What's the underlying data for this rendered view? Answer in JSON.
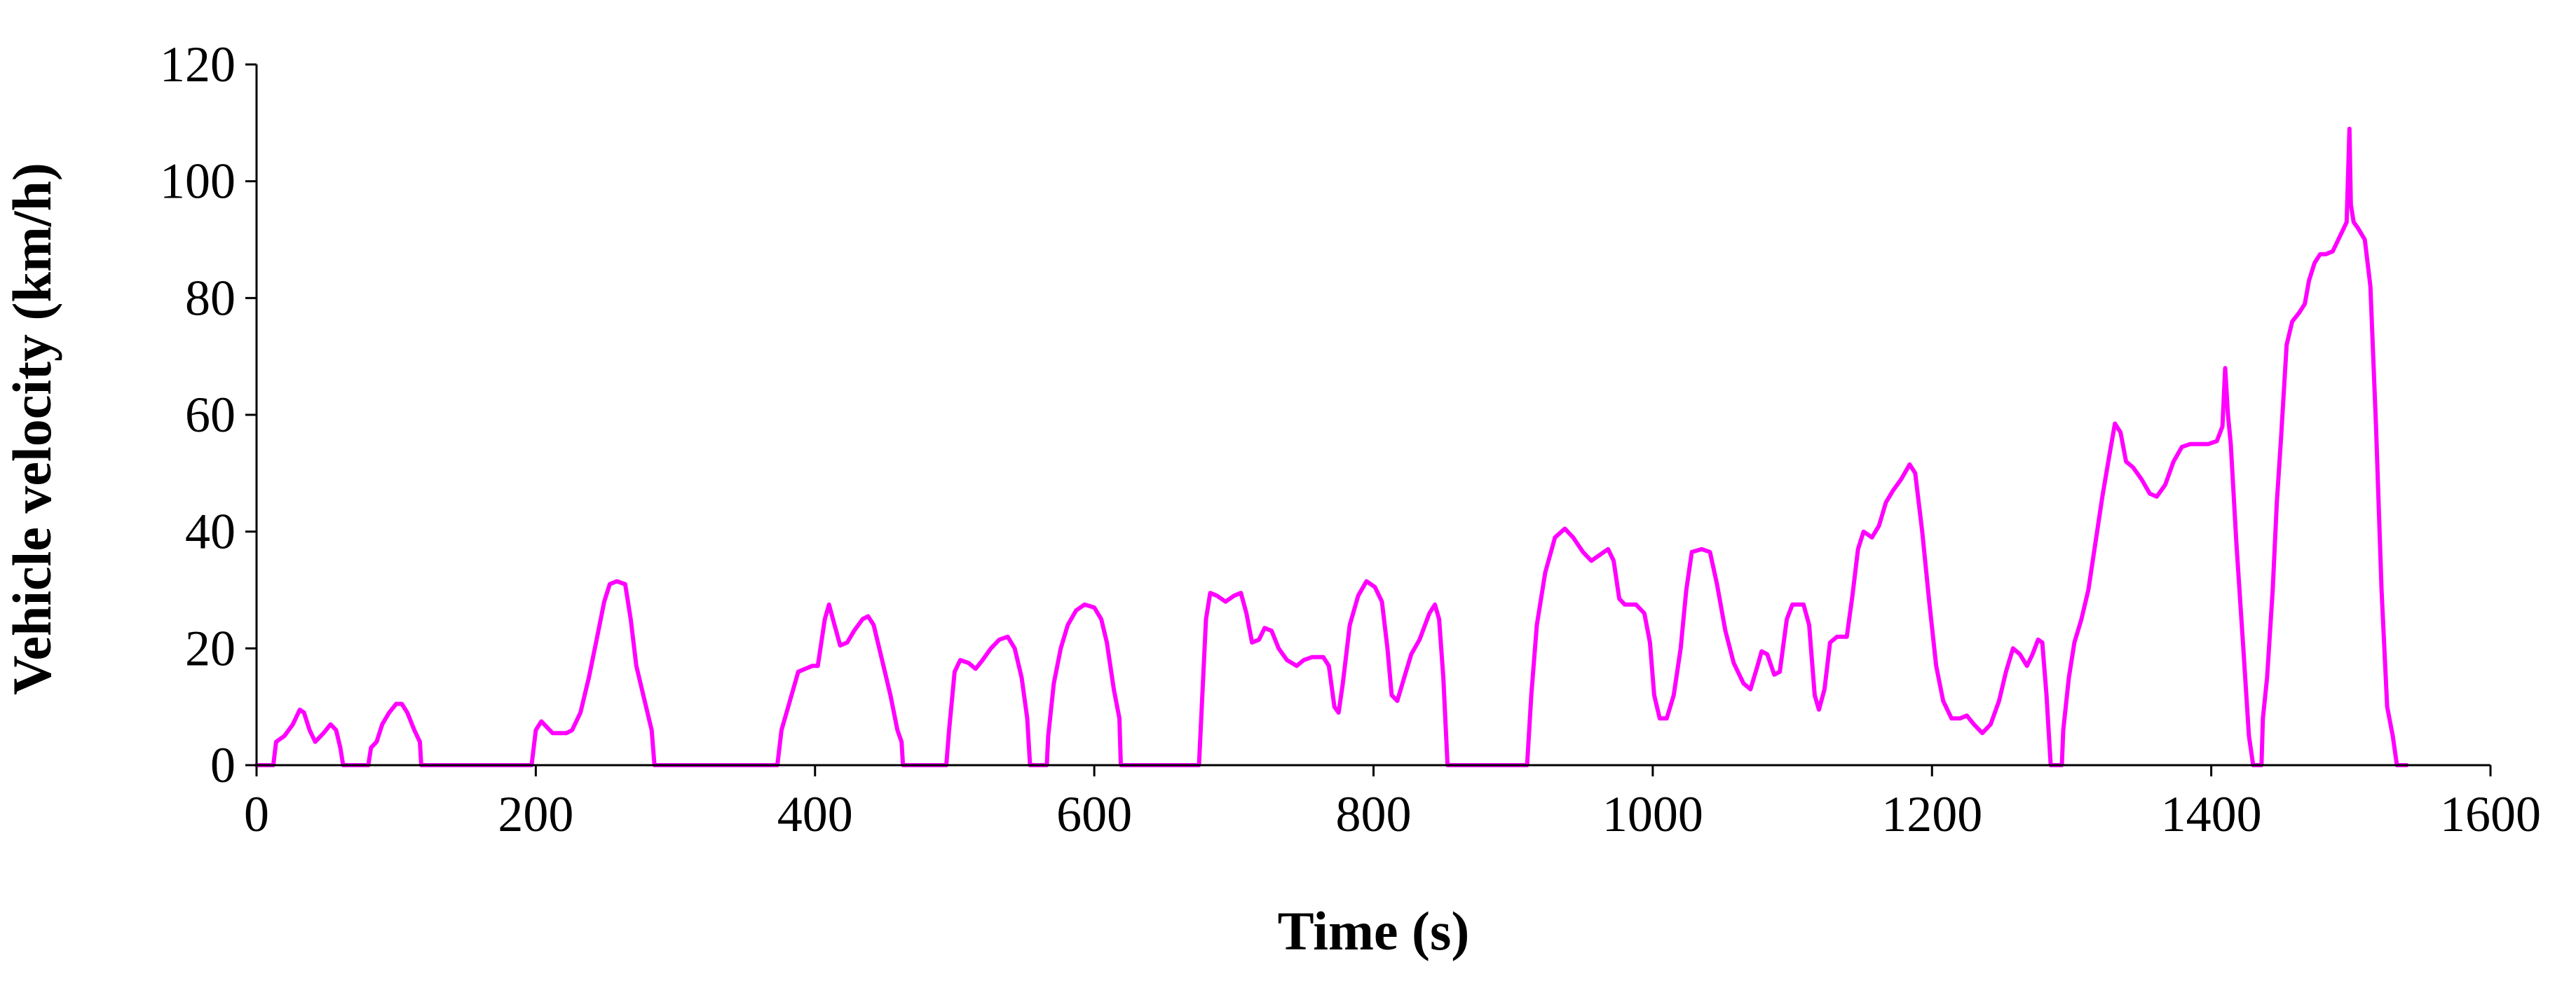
{
  "chart_data": {
    "type": "line",
    "title": "",
    "xlabel": "Time (s)",
    "ylabel": "Vehicle velocity (km/h)",
    "xlim": [
      0,
      1600
    ],
    "ylim": [
      0,
      120
    ],
    "x_ticks": [
      0,
      200,
      400,
      600,
      800,
      1000,
      1200,
      1400,
      1600
    ],
    "y_ticks": [
      0,
      20,
      40,
      60,
      80,
      100,
      120
    ],
    "x_tick_labels": [
      "0",
      "200",
      "400",
      "600",
      "800",
      "1000",
      "1200",
      "1400",
      "1600"
    ],
    "y_tick_labels": [
      "0",
      "20",
      "40",
      "60",
      "80",
      "100",
      "120"
    ],
    "grid": false,
    "legend": "none",
    "series": [
      {
        "color": "#ff00ff",
        "points": [
          [
            0,
            0
          ],
          [
            12,
            0
          ],
          [
            14,
            4
          ],
          [
            20,
            5
          ],
          [
            26,
            7
          ],
          [
            31,
            9.5
          ],
          [
            34,
            9
          ],
          [
            38,
            6
          ],
          [
            42,
            4
          ],
          [
            48,
            5.5
          ],
          [
            53,
            7
          ],
          [
            57,
            6
          ],
          [
            60,
            3
          ],
          [
            62,
            0
          ],
          [
            80,
            0
          ],
          [
            82,
            3
          ],
          [
            86,
            4
          ],
          [
            90,
            7
          ],
          [
            95,
            9
          ],
          [
            100,
            10.5
          ],
          [
            104,
            10.5
          ],
          [
            108,
            9
          ],
          [
            113,
            6
          ],
          [
            117,
            4
          ],
          [
            118,
            0
          ],
          [
            197,
            0
          ],
          [
            200,
            6
          ],
          [
            204,
            7.5
          ],
          [
            208,
            6.5
          ],
          [
            212,
            5.5
          ],
          [
            216,
            5.5
          ],
          [
            222,
            5.5
          ],
          [
            226,
            6
          ],
          [
            232,
            9
          ],
          [
            238,
            15
          ],
          [
            244,
            22
          ],
          [
            249,
            28
          ],
          [
            253,
            31
          ],
          [
            258,
            31.5
          ],
          [
            264,
            31
          ],
          [
            268,
            25
          ],
          [
            272,
            17
          ],
          [
            278,
            11
          ],
          [
            283,
            6
          ],
          [
            285,
            0
          ],
          [
            373,
            0
          ],
          [
            376,
            6
          ],
          [
            382,
            11
          ],
          [
            388,
            16
          ],
          [
            393,
            16.5
          ],
          [
            398,
            17
          ],
          [
            402,
            17
          ],
          [
            407,
            25
          ],
          [
            410,
            27.5
          ],
          [
            414,
            24
          ],
          [
            418,
            20.5
          ],
          [
            423,
            21
          ],
          [
            428,
            23
          ],
          [
            434,
            25
          ],
          [
            438,
            25.5
          ],
          [
            442,
            24
          ],
          [
            448,
            18
          ],
          [
            454,
            12
          ],
          [
            459,
            6
          ],
          [
            462,
            4
          ],
          [
            463,
            0
          ],
          [
            494,
            0
          ],
          [
            496,
            6
          ],
          [
            500,
            16
          ],
          [
            504,
            18
          ],
          [
            510,
            17.5
          ],
          [
            515,
            16.5
          ],
          [
            520,
            18
          ],
          [
            526,
            20
          ],
          [
            532,
            21.5
          ],
          [
            538,
            22
          ],
          [
            543,
            20
          ],
          [
            548,
            15
          ],
          [
            552,
            8
          ],
          [
            554,
            0
          ],
          [
            563,
            0
          ],
          [
            566,
            0
          ],
          [
            567,
            5
          ],
          [
            571,
            14
          ],
          [
            576,
            20
          ],
          [
            581,
            24
          ],
          [
            587,
            26.5
          ],
          [
            593,
            27.5
          ],
          [
            600,
            27
          ],
          [
            605,
            25
          ],
          [
            609,
            21
          ],
          [
            614,
            13
          ],
          [
            618,
            8
          ],
          [
            619,
            0
          ],
          [
            675,
            0
          ],
          [
            677,
            10
          ],
          [
            680,
            25
          ],
          [
            683,
            29.5
          ],
          [
            688,
            29
          ],
          [
            694,
            28
          ],
          [
            700,
            29
          ],
          [
            705,
            29.5
          ],
          [
            709,
            26
          ],
          [
            713,
            21
          ],
          [
            718,
            21.5
          ],
          [
            722,
            23.5
          ],
          [
            727,
            23
          ],
          [
            732,
            20
          ],
          [
            738,
            18
          ],
          [
            745,
            17
          ],
          [
            750,
            18
          ],
          [
            756,
            18.5
          ],
          [
            764,
            18.5
          ],
          [
            768,
            17
          ],
          [
            772,
            10
          ],
          [
            775,
            9
          ],
          [
            778,
            14
          ],
          [
            783,
            24
          ],
          [
            789,
            29
          ],
          [
            795,
            31.5
          ],
          [
            801,
            30.5
          ],
          [
            806,
            28
          ],
          [
            810,
            20
          ],
          [
            813,
            12
          ],
          [
            817,
            11
          ],
          [
            822,
            15
          ],
          [
            827,
            19
          ],
          [
            833,
            21.5
          ],
          [
            840,
            26
          ],
          [
            844,
            27.5
          ],
          [
            847,
            25
          ],
          [
            850,
            15
          ],
          [
            853,
            0
          ],
          [
            910,
            0
          ],
          [
            913,
            12
          ],
          [
            917,
            24
          ],
          [
            923,
            33
          ],
          [
            930,
            39
          ],
          [
            937,
            40.5
          ],
          [
            943,
            39
          ],
          [
            950,
            36.5
          ],
          [
            956,
            35
          ],
          [
            962,
            36
          ],
          [
            968,
            37
          ],
          [
            972,
            35
          ],
          [
            976,
            28.5
          ],
          [
            980,
            27.5
          ],
          [
            988,
            27.5
          ],
          [
            994,
            26
          ],
          [
            998,
            21
          ],
          [
            1001,
            12
          ],
          [
            1005,
            8
          ],
          [
            1010,
            8
          ],
          [
            1015,
            12
          ],
          [
            1020,
            20
          ],
          [
            1024,
            30
          ],
          [
            1028,
            36.5
          ],
          [
            1035,
            37
          ],
          [
            1041,
            36.5
          ],
          [
            1046,
            31
          ],
          [
            1052,
            23
          ],
          [
            1058,
            17.5
          ],
          [
            1065,
            14
          ],
          [
            1070,
            13
          ],
          [
            1075,
            17
          ],
          [
            1078,
            19.5
          ],
          [
            1082,
            19
          ],
          [
            1087,
            15.5
          ],
          [
            1091,
            16
          ],
          [
            1096,
            25
          ],
          [
            1100,
            27.5
          ],
          [
            1108,
            27.5
          ],
          [
            1112,
            24
          ],
          [
            1116,
            12
          ],
          [
            1119,
            9.5
          ],
          [
            1123,
            13
          ],
          [
            1127,
            21
          ],
          [
            1132,
            22
          ],
          [
            1139,
            22
          ],
          [
            1143,
            29
          ],
          [
            1147,
            37
          ],
          [
            1151,
            40
          ],
          [
            1157,
            39
          ],
          [
            1162,
            41
          ],
          [
            1167,
            45
          ],
          [
            1172,
            47
          ],
          [
            1178,
            49
          ],
          [
            1184,
            51.5
          ],
          [
            1188,
            50
          ],
          [
            1193,
            40
          ],
          [
            1198,
            28
          ],
          [
            1203,
            17
          ],
          [
            1208,
            11
          ],
          [
            1214,
            8
          ],
          [
            1220,
            8
          ],
          [
            1225,
            8.5
          ],
          [
            1230,
            7
          ],
          [
            1236,
            5.5
          ],
          [
            1242,
            7
          ],
          [
            1248,
            11
          ],
          [
            1253,
            16
          ],
          [
            1258,
            20
          ],
          [
            1263,
            19
          ],
          [
            1268,
            17
          ],
          [
            1272,
            19
          ],
          [
            1276,
            21.5
          ],
          [
            1279,
            21
          ],
          [
            1282,
            12
          ],
          [
            1285,
            0
          ],
          [
            1293,
            0
          ],
          [
            1294,
            6
          ],
          [
            1298,
            15
          ],
          [
            1302,
            21
          ],
          [
            1307,
            25
          ],
          [
            1312,
            30
          ],
          [
            1317,
            38
          ],
          [
            1322,
            46
          ],
          [
            1327,
            53
          ],
          [
            1331,
            58.5
          ],
          [
            1335,
            57
          ],
          [
            1339,
            52
          ],
          [
            1344,
            51
          ],
          [
            1350,
            49
          ],
          [
            1356,
            46.5
          ],
          [
            1361,
            46
          ],
          [
            1367,
            48
          ],
          [
            1373,
            52
          ],
          [
            1379,
            54.5
          ],
          [
            1385,
            55
          ],
          [
            1392,
            55
          ],
          [
            1398,
            55
          ],
          [
            1404,
            55.5
          ],
          [
            1408,
            58
          ],
          [
            1410,
            68
          ],
          [
            1412,
            60
          ],
          [
            1414,
            55
          ],
          [
            1418,
            38
          ],
          [
            1423,
            20
          ],
          [
            1427,
            5
          ],
          [
            1430,
            0
          ],
          [
            1436,
            0
          ],
          [
            1437,
            8
          ],
          [
            1440,
            15
          ],
          [
            1444,
            30
          ],
          [
            1447,
            45
          ],
          [
            1450,
            56
          ],
          [
            1454,
            72
          ],
          [
            1458,
            76
          ],
          [
            1463,
            77.5
          ],
          [
            1467,
            79
          ],
          [
            1470,
            83
          ],
          [
            1474,
            86
          ],
          [
            1478,
            87.5
          ],
          [
            1482,
            87.5
          ],
          [
            1487,
            88
          ],
          [
            1491,
            90
          ],
          [
            1495,
            92
          ],
          [
            1497,
            93
          ],
          [
            1499,
            109
          ],
          [
            1500,
            96
          ],
          [
            1502,
            93
          ],
          [
            1505,
            92
          ],
          [
            1510,
            90
          ],
          [
            1514,
            82
          ],
          [
            1518,
            58
          ],
          [
            1522,
            30
          ],
          [
            1526,
            10
          ],
          [
            1530,
            5
          ],
          [
            1533,
            0
          ],
          [
            1540,
            0
          ]
        ]
      }
    ]
  }
}
